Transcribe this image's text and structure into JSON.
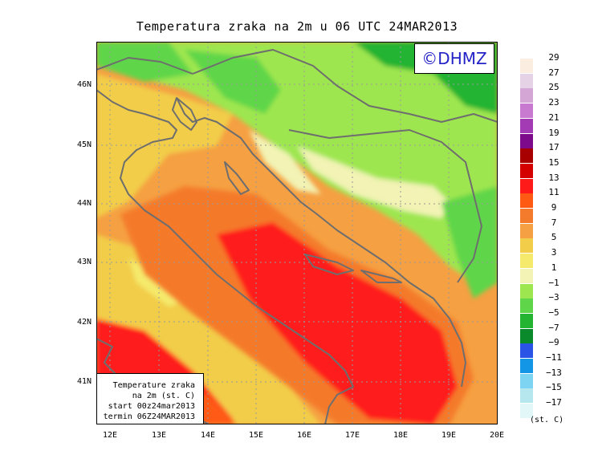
{
  "title": "Temperatura zraka na 2m u 06 UTC 24MAR2013",
  "logo_text": "©DHMZ",
  "info": {
    "line1": "Temperature zraka",
    "line2": "na 2m (st. C)",
    "line3": "start 00z24mar2013",
    "line4": "termin 06Z24MAR2013"
  },
  "lat_labels": [
    "46N",
    "45N",
    "44N",
    "43N",
    "42N",
    "41N"
  ],
  "lon_labels": [
    "12E",
    "13E",
    "14E",
    "15E",
    "16E",
    "17E",
    "18E",
    "19E",
    "20E"
  ],
  "legend": {
    "labels": [
      "29",
      "27",
      "25",
      "23",
      "21",
      "19",
      "17",
      "15",
      "13",
      "11",
      "9",
      "7",
      "5",
      "3",
      "1",
      "−1",
      "−3",
      "−5",
      "−7",
      "−9",
      "−11",
      "−13",
      "−15",
      "−17"
    ],
    "colors": [
      "#fbeee0",
      "#e6d2e6",
      "#d4a6d6",
      "#c87ad0",
      "#a33cb4",
      "#7c0a8a",
      "#a80000",
      "#d40000",
      "#ff1a1a",
      "#ff5a14",
      "#f47a2c",
      "#f5a042",
      "#f2cd4a",
      "#f5ea6c",
      "#f2f3b4",
      "#9ee650",
      "#5fd64a",
      "#24b432",
      "#0a8a2a",
      "#2a54e6",
      "#1496e6",
      "#7cd3f2",
      "#b6e6ee",
      "#e2f7f7"
    ],
    "units": "(st. C)"
  },
  "colors": {
    "sea_warm": "#ff1a1a",
    "sea_mid": "#f47a2c",
    "coast": "#f2cd4a",
    "inland_green": "#9ee650",
    "mountain_green": "#24b432",
    "coastline": "#6e6e6e",
    "logo_text": "#2323c8"
  }
}
